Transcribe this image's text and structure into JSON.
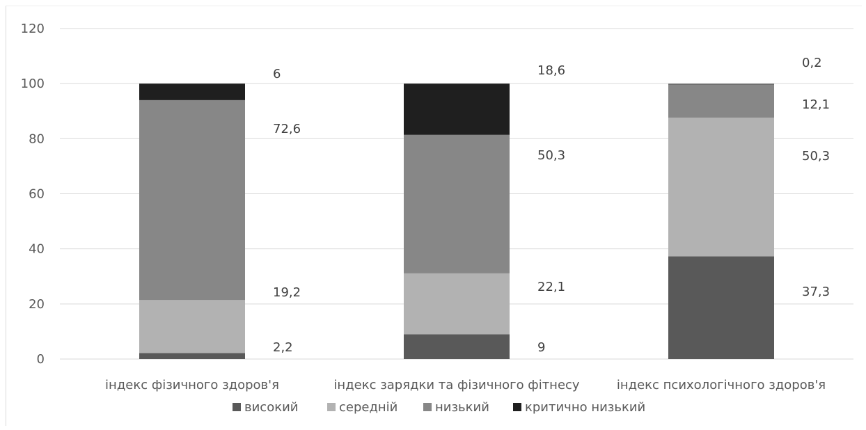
{
  "chart_data": {
    "type": "bar",
    "stacked": true,
    "categories": [
      "індекс фізичного здоров'я",
      "індекс зарядки та фізичного фітнесу",
      "індекс психологічного здоров'я"
    ],
    "series": [
      {
        "name": "високий",
        "values": [
          2.2,
          9,
          37.3
        ],
        "color": "#595959"
      },
      {
        "name": "середній",
        "values": [
          19.2,
          22.1,
          50.3
        ],
        "color": "#b2b2b2"
      },
      {
        "name": "низький",
        "values": [
          72.6,
          50.3,
          12.1
        ],
        "color": "#878787"
      },
      {
        "name": "критично низький",
        "values": [
          6,
          18.6,
          0.2
        ],
        "color": "#1f1f1f"
      }
    ],
    "data_labels": [
      [
        "2,2",
        "19,2",
        "72,6",
        "6"
      ],
      [
        "9",
        "22,1",
        "50,3",
        "18,6"
      ],
      [
        "37,3",
        "50,3",
        "12,1",
        "0,2"
      ]
    ],
    "ylim": [
      0,
      120
    ],
    "yticks": [
      0,
      20,
      40,
      60,
      80,
      100,
      120
    ],
    "ytick_labels": [
      "0",
      "20",
      "40",
      "60",
      "80",
      "100",
      "120"
    ],
    "grid": true,
    "legend_position": "bottom",
    "title": "",
    "xlabel": "",
    "ylabel": ""
  }
}
